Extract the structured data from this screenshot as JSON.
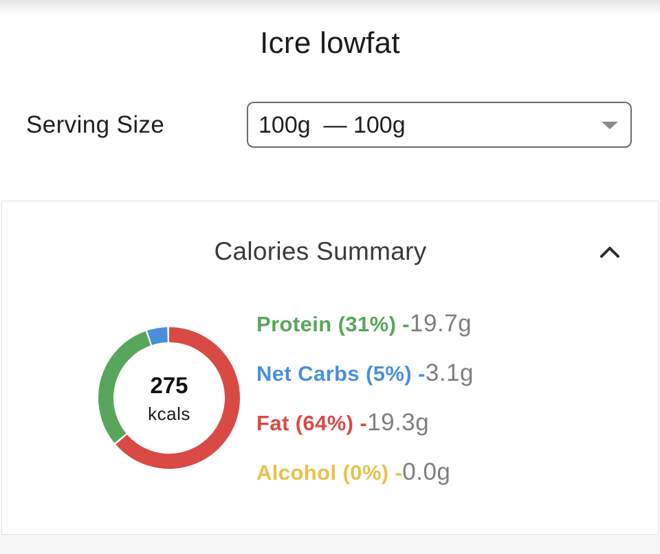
{
  "food": {
    "title": "Icre lowfat"
  },
  "serving": {
    "label": "Serving Size",
    "selected_value": "100g  — 100g"
  },
  "calories_summary": {
    "title": "Calories Summary",
    "collapse_icon": "chevron-up-icon",
    "total_kcal": "275",
    "kcal_unit": "kcals",
    "macros": [
      {
        "label": "Protein (31%)",
        "separator": " -",
        "amount": "19.7g",
        "percent": 31,
        "color": "#57a65a"
      },
      {
        "label": "Net Carbs (5%)",
        "separator": " -",
        "amount": "3.1g",
        "percent": 5,
        "color": "#4a90d9"
      },
      {
        "label": "Fat (64%)",
        "separator": " -",
        "amount": "19.3g",
        "percent": 64,
        "color": "#d94a45"
      },
      {
        "label": "Alcohol (0%)",
        "separator": " -",
        "amount": "0.0g",
        "percent": 0,
        "color": "#e8c24a"
      }
    ]
  }
}
